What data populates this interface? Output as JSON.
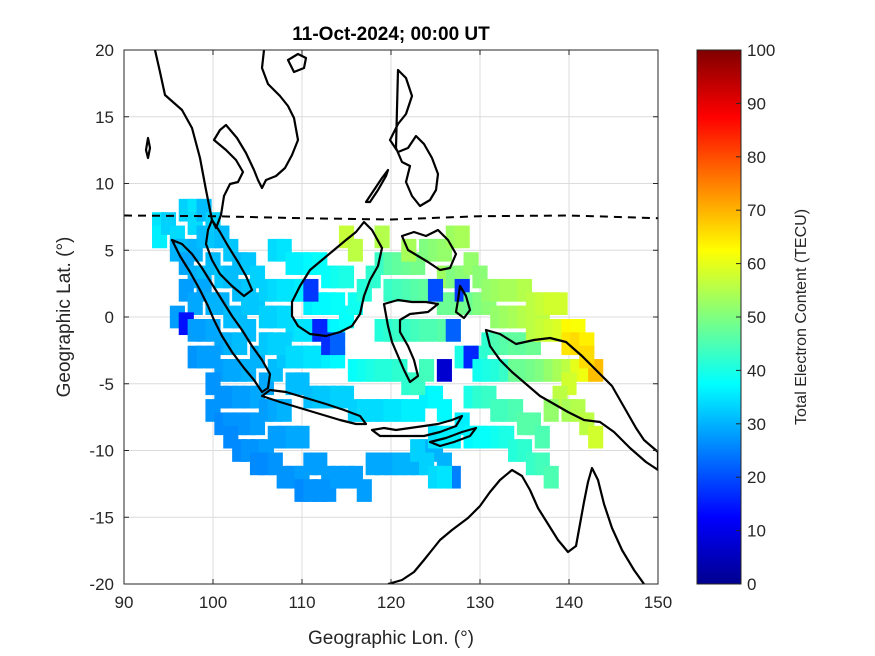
{
  "chart_data": {
    "type": "heatmap",
    "title": "11-Oct-2024; 00:00 UT",
    "xlabel": "Geographic Lon. (°)",
    "ylabel": "Geographic Lat. (°)",
    "xlim": [
      90,
      150
    ],
    "ylim": [
      -20,
      20
    ],
    "x_ticks": [
      "90",
      "100",
      "110",
      "120",
      "130",
      "140",
      "150"
    ],
    "y_ticks": [
      "20",
      "15",
      "10",
      "5",
      "0",
      "-5",
      "-10",
      "-15",
      "-20"
    ],
    "grid": true,
    "colorbar": {
      "label": "Total Electron Content (TECU)",
      "range": [
        0,
        100
      ],
      "ticks": [
        "100",
        "90",
        "80",
        "70",
        "60",
        "50",
        "40",
        "30",
        "20",
        "10",
        "0"
      ],
      "colormap": "jet"
    },
    "magnetic_equator": [
      [
        90,
        7.6
      ],
      [
        100,
        7.55
      ],
      [
        110,
        7.4
      ],
      [
        120,
        7.3
      ],
      [
        130,
        7.55
      ],
      [
        140,
        7.6
      ],
      [
        150,
        7.4
      ]
    ],
    "tec_points": [
      [
        94,
        7,
        35
      ],
      [
        94,
        6,
        36
      ],
      [
        95,
        7,
        33
      ],
      [
        96,
        6,
        34
      ],
      [
        97,
        8,
        33
      ],
      [
        98,
        8,
        35
      ],
      [
        98,
        7,
        34
      ],
      [
        99,
        8,
        31
      ],
      [
        100,
        7,
        33
      ],
      [
        96,
        5,
        30
      ],
      [
        97,
        5,
        31
      ],
      [
        98,
        5,
        30
      ],
      [
        99,
        6,
        31
      ],
      [
        100,
        6,
        32
      ],
      [
        101,
        6,
        31
      ],
      [
        102,
        5,
        32
      ],
      [
        103,
        4,
        31
      ],
      [
        104,
        4,
        32
      ],
      [
        97,
        4,
        29
      ],
      [
        98,
        3,
        30
      ],
      [
        99,
        3,
        31
      ],
      [
        100,
        4,
        31
      ],
      [
        101,
        3,
        32
      ],
      [
        102,
        3,
        31
      ],
      [
        103,
        2,
        31
      ],
      [
        104,
        2,
        32
      ],
      [
        105,
        3,
        33
      ],
      [
        97,
        2,
        28
      ],
      [
        98,
        1,
        29
      ],
      [
        99,
        2,
        29
      ],
      [
        100,
        1,
        30
      ],
      [
        101,
        1,
        30
      ],
      [
        102,
        0,
        31
      ],
      [
        103,
        0,
        31
      ],
      [
        104,
        1,
        32
      ],
      [
        105,
        1,
        32
      ],
      [
        96,
        0,
        28
      ],
      [
        97,
        -0.5,
        14
      ],
      [
        98,
        -1,
        28
      ],
      [
        99,
        -1,
        28
      ],
      [
        100,
        -1,
        29
      ],
      [
        101,
        -2,
        29
      ],
      [
        102,
        -2,
        30
      ],
      [
        103,
        -2,
        31
      ],
      [
        104,
        -1,
        31
      ],
      [
        98,
        -3,
        27
      ],
      [
        99,
        -3,
        28
      ],
      [
        100,
        -3,
        28
      ],
      [
        101,
        -4,
        28
      ],
      [
        102,
        -4,
        29
      ],
      [
        103,
        -4,
        29
      ],
      [
        104,
        -4,
        30
      ],
      [
        105,
        -3,
        30
      ],
      [
        106,
        -2,
        31
      ],
      [
        100,
        -5,
        27
      ],
      [
        101,
        -6,
        27
      ],
      [
        102,
        -6,
        27
      ],
      [
        103,
        -6,
        28
      ],
      [
        104,
        -6,
        28
      ],
      [
        105,
        -6,
        29
      ],
      [
        106,
        -5,
        29
      ],
      [
        107,
        -4,
        31
      ],
      [
        108,
        -3,
        32
      ],
      [
        100,
        -7,
        27
      ],
      [
        101,
        -8,
        26
      ],
      [
        102,
        -8,
        27
      ],
      [
        103,
        -8,
        27
      ],
      [
        104,
        -8,
        27
      ],
      [
        105,
        -8,
        28
      ],
      [
        106,
        -7,
        28
      ],
      [
        107,
        -7,
        29
      ],
      [
        108,
        -7,
        30
      ],
      [
        102,
        -9,
        26
      ],
      [
        103,
        -10,
        26
      ],
      [
        104,
        -10,
        27
      ],
      [
        105,
        -10,
        27
      ],
      [
        106,
        -10,
        28
      ],
      [
        107,
        -9,
        28
      ],
      [
        108,
        -9,
        28
      ],
      [
        109,
        -9,
        29
      ],
      [
        110,
        -9,
        29
      ],
      [
        105,
        -11,
        26
      ],
      [
        106,
        -11,
        26
      ],
      [
        107,
        -11,
        27
      ],
      [
        108,
        -12,
        27
      ],
      [
        109,
        -12,
        27
      ],
      [
        110,
        -12,
        28
      ],
      [
        111,
        -11,
        28
      ],
      [
        112,
        -11,
        28
      ],
      [
        113,
        -12,
        28
      ],
      [
        110,
        -13,
        26
      ],
      [
        111,
        -13,
        27
      ],
      [
        112,
        -13,
        27
      ],
      [
        113,
        -13,
        27
      ],
      [
        114,
        -12,
        28
      ],
      [
        115,
        -12,
        28
      ],
      [
        116,
        -12,
        28
      ],
      [
        117,
        -13,
        28
      ],
      [
        118,
        -11,
        29
      ],
      [
        119,
        -11,
        29
      ],
      [
        120,
        -11,
        29
      ],
      [
        121,
        -11,
        30
      ],
      [
        122,
        -11,
        30
      ],
      [
        123,
        -11,
        30
      ],
      [
        124,
        -10,
        30
      ],
      [
        125,
        -10,
        30
      ],
      [
        126,
        -11,
        30
      ],
      [
        127,
        -12,
        25
      ],
      [
        109,
        -5,
        31
      ],
      [
        110,
        -5,
        31
      ],
      [
        111,
        -6,
        31
      ],
      [
        112,
        -6,
        32
      ],
      [
        113,
        -6,
        32
      ],
      [
        114,
        -6,
        33
      ],
      [
        115,
        -6,
        33
      ],
      [
        116,
        -7,
        33
      ],
      [
        117,
        -7,
        34
      ],
      [
        118,
        -7,
        34
      ],
      [
        119,
        -7,
        34
      ],
      [
        120,
        -7,
        35
      ],
      [
        121,
        -7,
        35
      ],
      [
        122,
        -7,
        36
      ],
      [
        123,
        -7,
        36
      ],
      [
        124,
        -6,
        36
      ],
      [
        125,
        -6,
        37
      ],
      [
        126,
        -7,
        37
      ],
      [
        107,
        5,
        34
      ],
      [
        108,
        5,
        35
      ],
      [
        109,
        4,
        36
      ],
      [
        110,
        4,
        36
      ],
      [
        111,
        4,
        37
      ],
      [
        112,
        4,
        38
      ],
      [
        113,
        3,
        38
      ],
      [
        114,
        3,
        39
      ],
      [
        115,
        3,
        40
      ],
      [
        106,
        2,
        33
      ],
      [
        107,
        2,
        34
      ],
      [
        108,
        2,
        35
      ],
      [
        109,
        2,
        35
      ],
      [
        110,
        2,
        36
      ],
      [
        111,
        1,
        36
      ],
      [
        112,
        1,
        37
      ],
      [
        113,
        1,
        37
      ],
      [
        114,
        1,
        38
      ],
      [
        106,
        0,
        33
      ],
      [
        107,
        0,
        33
      ],
      [
        108,
        0,
        34
      ],
      [
        109,
        -1,
        34
      ],
      [
        110,
        -1,
        35
      ],
      [
        111,
        -1,
        35
      ],
      [
        112,
        -1,
        36
      ],
      [
        113,
        -1,
        36
      ],
      [
        114,
        -1,
        37
      ],
      [
        106,
        -2,
        32
      ],
      [
        107,
        -2,
        33
      ],
      [
        108,
        -2,
        33
      ],
      [
        109,
        -3,
        34
      ],
      [
        110,
        -3,
        34
      ],
      [
        111,
        -3,
        35
      ],
      [
        112,
        -3,
        35
      ],
      [
        113,
        -3,
        36
      ],
      [
        114,
        -3,
        37
      ],
      [
        111,
        2,
        18
      ],
      [
        112,
        -1,
        16
      ],
      [
        113,
        -2,
        17
      ],
      [
        114,
        -2,
        22
      ],
      [
        115,
        0,
        38
      ],
      [
        116,
        1,
        39
      ],
      [
        117,
        2,
        41
      ],
      [
        118,
        3,
        42
      ],
      [
        119,
        4,
        43
      ],
      [
        116,
        -4,
        38
      ],
      [
        117,
        -4,
        39
      ],
      [
        118,
        -4,
        40
      ],
      [
        119,
        -4,
        41
      ],
      [
        120,
        -4,
        41
      ],
      [
        121,
        -4,
        42
      ],
      [
        122,
        -5,
        42
      ],
      [
        123,
        -5,
        43
      ],
      [
        124,
        -4,
        44
      ],
      [
        119,
        -1,
        41
      ],
      [
        120,
        -1,
        42
      ],
      [
        121,
        -1,
        43
      ],
      [
        122,
        -1,
        43
      ],
      [
        123,
        -1,
        44
      ],
      [
        124,
        -1,
        45
      ],
      [
        125,
        -1,
        45
      ],
      [
        126,
        -1,
        46
      ],
      [
        127,
        -1,
        46
      ],
      [
        120,
        2,
        43
      ],
      [
        121,
        2,
        44
      ],
      [
        122,
        2,
        45
      ],
      [
        123,
        2,
        46
      ],
      [
        124,
        2,
        47
      ],
      [
        125,
        2,
        47
      ],
      [
        126,
        1,
        48
      ],
      [
        127,
        1,
        48
      ],
      [
        128,
        1,
        49
      ],
      [
        120,
        4,
        46
      ],
      [
        121,
        4,
        47
      ],
      [
        122,
        4,
        48
      ],
      [
        123,
        4,
        49
      ],
      [
        124,
        5,
        50
      ],
      [
        125,
        5,
        51
      ],
      [
        126,
        5,
        52
      ],
      [
        127,
        6,
        53
      ],
      [
        128,
        6,
        54
      ],
      [
        115,
        6,
        57
      ],
      [
        116,
        5,
        56
      ],
      [
        119,
        6,
        55
      ],
      [
        122,
        5,
        54
      ],
      [
        126,
        3,
        53
      ],
      [
        127,
        3,
        50
      ],
      [
        128,
        3,
        51
      ],
      [
        129,
        4,
        52
      ],
      [
        130,
        3,
        51
      ],
      [
        128,
        -3,
        40
      ],
      [
        129,
        -3,
        38
      ],
      [
        130,
        -3,
        42
      ],
      [
        131,
        -2,
        42
      ],
      [
        132,
        -2,
        45
      ],
      [
        133,
        -2,
        46
      ],
      [
        134,
        -2,
        47
      ],
      [
        135,
        -2,
        47
      ],
      [
        136,
        -2,
        48
      ],
      [
        126,
        -4,
        8
      ],
      [
        128,
        2,
        18
      ],
      [
        125,
        2,
        20
      ],
      [
        129,
        -3,
        16
      ],
      [
        127,
        -1,
        22
      ],
      [
        130,
        -4,
        39
      ],
      [
        131,
        -4,
        40
      ],
      [
        132,
        -4,
        41
      ],
      [
        133,
        -4,
        43
      ],
      [
        129,
        1,
        48
      ],
      [
        130,
        1,
        50
      ],
      [
        131,
        1,
        51
      ],
      [
        132,
        0,
        52
      ],
      [
        133,
        0,
        53
      ],
      [
        134,
        0,
        54
      ],
      [
        135,
        0,
        55
      ],
      [
        136,
        0,
        56
      ],
      [
        137,
        0,
        56
      ],
      [
        131,
        2,
        52
      ],
      [
        132,
        2,
        53
      ],
      [
        133,
        2,
        54
      ],
      [
        134,
        2,
        54
      ],
      [
        135,
        2,
        55
      ],
      [
        136,
        1,
        56
      ],
      [
        137,
        1,
        57
      ],
      [
        138,
        1,
        58
      ],
      [
        139,
        1,
        58
      ],
      [
        136,
        -1,
        56
      ],
      [
        137,
        -1,
        57
      ],
      [
        138,
        -1,
        58
      ],
      [
        139,
        -1,
        59
      ],
      [
        140,
        -1,
        63
      ],
      [
        141,
        -1,
        62
      ],
      [
        140,
        -2,
        65
      ],
      [
        141,
        -2,
        66
      ],
      [
        142,
        -2,
        64
      ],
      [
        134,
        -4,
        48
      ],
      [
        135,
        -4,
        48
      ],
      [
        136,
        -4,
        49
      ],
      [
        137,
        -4,
        50
      ],
      [
        138,
        -4,
        52
      ],
      [
        139,
        -4,
        54
      ],
      [
        140,
        -4,
        56
      ],
      [
        141,
        -4,
        60
      ],
      [
        142,
        -4,
        61
      ],
      [
        143,
        -4,
        69
      ],
      [
        142,
        -3,
        66
      ],
      [
        140,
        -5,
        58
      ],
      [
        139,
        -6,
        56
      ],
      [
        138,
        -7,
        52
      ],
      [
        140,
        -7,
        54
      ],
      [
        141,
        -7,
        55
      ],
      [
        142,
        -8,
        56
      ],
      [
        143,
        -9,
        58
      ],
      [
        129,
        -6,
        40
      ],
      [
        130,
        -6,
        42
      ],
      [
        131,
        -6,
        43
      ],
      [
        132,
        -7,
        44
      ],
      [
        133,
        -7,
        44
      ],
      [
        134,
        -7,
        45
      ],
      [
        135,
        -8,
        46
      ],
      [
        136,
        -8,
        46
      ],
      [
        137,
        -9,
        45
      ],
      [
        128,
        -8,
        36
      ],
      [
        129,
        -9,
        37
      ],
      [
        130,
        -9,
        38
      ],
      [
        131,
        -9,
        38
      ],
      [
        132,
        -9,
        39
      ],
      [
        133,
        -9,
        40
      ],
      [
        134,
        -10,
        41
      ],
      [
        135,
        -10,
        42
      ],
      [
        136,
        -11,
        43
      ],
      [
        125,
        -9,
        35
      ],
      [
        126,
        -9,
        36
      ],
      [
        127,
        -9,
        36
      ],
      [
        123,
        -10,
        33
      ],
      [
        124,
        -11,
        33
      ],
      [
        125,
        -12,
        34
      ],
      [
        126,
        -12,
        35
      ],
      [
        137,
        -11,
        44
      ],
      [
        138,
        -12,
        45
      ]
    ]
  }
}
